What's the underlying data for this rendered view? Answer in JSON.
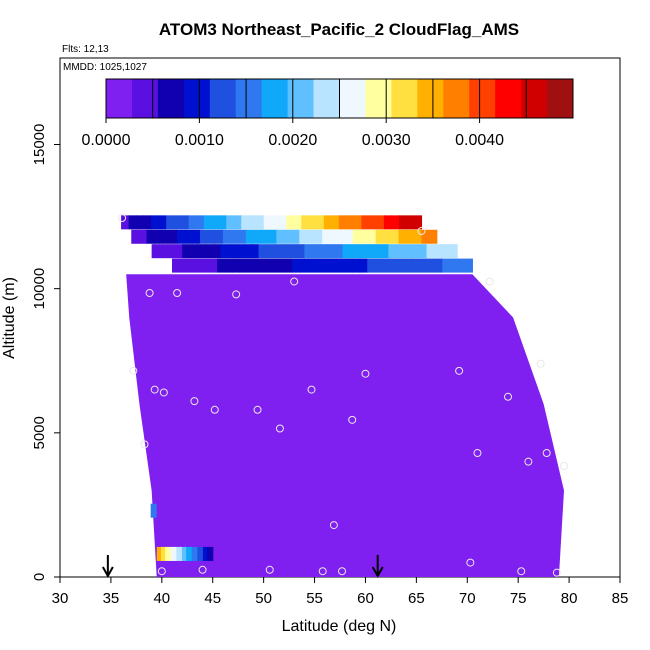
{
  "chart_data": {
    "type": "heatmap",
    "title": "ATOM3 Northeast_Pacific_2 CloudFlag_AMS",
    "flights_note": "Flts: 12,13",
    "dates_note": "MMDD: 1025,1027",
    "xlabel": "Latitude (deg N)",
    "ylabel": "Altitude (m)",
    "xlim": [
      30,
      85
    ],
    "ylim": [
      0,
      18000
    ],
    "x_ticks": [
      "30",
      "35",
      "40",
      "45",
      "50",
      "55",
      "60",
      "65",
      "70",
      "75",
      "80",
      "85"
    ],
    "y_ticks": [
      "0",
      "5000",
      "10000",
      "15000"
    ],
    "y_tick_values": [
      0,
      5000,
      10000,
      15000
    ],
    "x_tick_values": [
      30,
      35,
      40,
      45,
      50,
      55,
      60,
      65,
      70,
      75,
      80,
      85
    ],
    "colorbar": {
      "range": [
        0,
        0.005
      ],
      "labels": [
        "0.0000",
        "0.0010",
        "0.0020",
        "0.0030",
        "0.0040"
      ],
      "label_values": [
        0,
        0.001,
        0.002,
        0.003,
        0.004
      ],
      "colors": [
        "#8020f0",
        "#5a10e0",
        "#1000b0",
        "#0010d0",
        "#2050e0",
        "#2f78f0",
        "#10a8f8",
        "#60c0ff",
        "#b8e4ff",
        "#f0f8ff",
        "#ffffa0",
        "#ffe040",
        "#ffb000",
        "#ff8000",
        "#ff4000",
        "#ff0000",
        "#d00000",
        "#a01010"
      ]
    },
    "background_block": {
      "color": "#8020f0",
      "edge_profile": [
        {
          "alt": 0,
          "lat_min": 39.5,
          "lat_max": 79.0
        },
        {
          "alt": 3000,
          "lat_min": 39.0,
          "lat_max": 79.5
        },
        {
          "alt": 6000,
          "lat_min": 37.8,
          "lat_max": 77.5
        },
        {
          "alt": 9000,
          "lat_min": 36.8,
          "lat_max": 74.5
        },
        {
          "alt": 10500,
          "lat_min": 36.5,
          "lat_max": 70.5
        }
      ]
    },
    "gradient_rows": [
      {
        "alt": 12300,
        "lat_start": 36.0,
        "lat_end": 65.5,
        "value_start": 0.0005,
        "value_end": 0.0047
      },
      {
        "alt": 11800,
        "lat_start": 37.0,
        "lat_end": 67.0,
        "value_start": 0.0004,
        "value_end": 0.0037
      },
      {
        "alt": 11300,
        "lat_start": 39.0,
        "lat_end": 69.0,
        "value_start": 0.0004,
        "value_end": 0.0024
      },
      {
        "alt": 10800,
        "lat_start": 41.0,
        "lat_end": 70.5,
        "value_start": 0.0004,
        "value_end": 0.0015
      },
      {
        "alt": 800,
        "lat_start": 39.5,
        "lat_end": 45.0,
        "value_start": 0.0035,
        "value_end": 0.0006
      }
    ],
    "small_cells": [
      {
        "alt": 2300,
        "lat": 39.2,
        "value": 0.0014
      }
    ],
    "points": [
      [
        36.1,
        12450
      ],
      [
        65.5,
        12000
      ],
      [
        53,
        10250
      ],
      [
        72.2,
        10250
      ],
      [
        38.8,
        9850
      ],
      [
        41.5,
        9850
      ],
      [
        47.3,
        9800
      ],
      [
        37.2,
        7150
      ],
      [
        60,
        7050
      ],
      [
        69.2,
        7150
      ],
      [
        77.2,
        7400
      ],
      [
        39.3,
        6500
      ],
      [
        40.2,
        6400
      ],
      [
        74,
        6250
      ],
      [
        43.2,
        6100
      ],
      [
        45.2,
        5800
      ],
      [
        49.4,
        5800
      ],
      [
        54.7,
        6500
      ],
      [
        58.7,
        5450
      ],
      [
        51.6,
        5150
      ],
      [
        38.3,
        4600
      ],
      [
        71,
        4300
      ],
      [
        76,
        4000
      ],
      [
        77.8,
        4300
      ],
      [
        79.5,
        3850
      ],
      [
        56.9,
        1800
      ],
      [
        70.3,
        500
      ],
      [
        40,
        200
      ],
      [
        44,
        250
      ],
      [
        50.6,
        250
      ],
      [
        55.8,
        200
      ],
      [
        57.7,
        200
      ],
      [
        75.3,
        200
      ],
      [
        78.8,
        150
      ]
    ],
    "flight_arrows": [
      34.7,
      61.2
    ]
  }
}
